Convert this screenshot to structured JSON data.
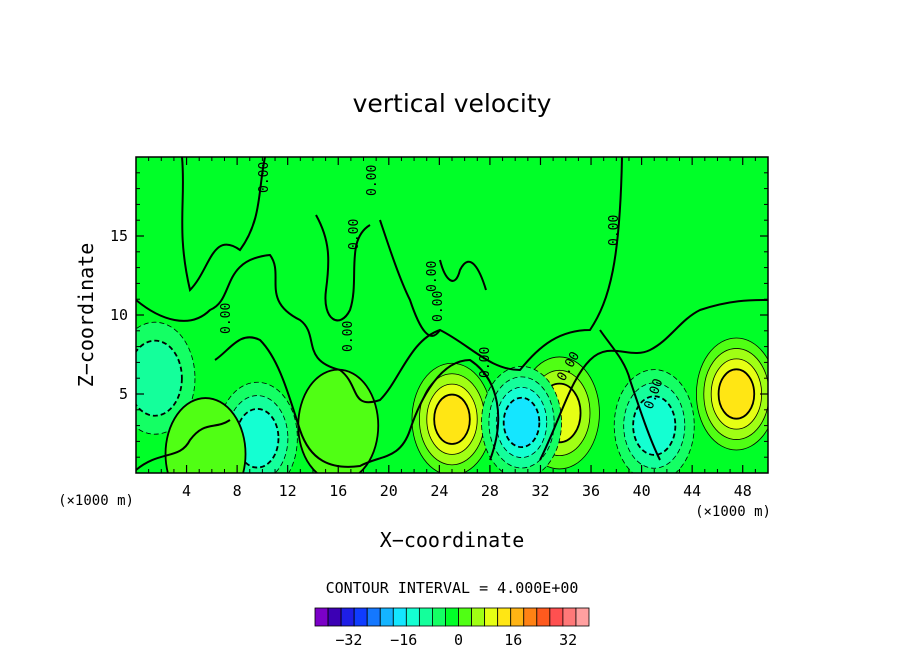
{
  "chart_data": {
    "type": "heatmap",
    "title": "vertical velocity",
    "xlabel": "X−coordinate",
    "ylabel": "Z−coordinate",
    "x_unit_left": "(×1000 m)",
    "x_unit_right": "(×1000 m)",
    "xlim": [
      0,
      50
    ],
    "ylim": [
      0,
      20
    ],
    "x_ticks": [
      4,
      8,
      12,
      16,
      20,
      24,
      28,
      32,
      36,
      40,
      44,
      48
    ],
    "y_ticks": [
      5,
      10,
      15
    ],
    "contour_interval_text": "CONTOUR INTERVAL = 4.000E+00",
    "contour_labels": [
      "0.00",
      "0.00",
      "0.00",
      "0.00",
      "0.00",
      "0.00",
      "0.00",
      "0.00",
      "0.00",
      "0.00",
      "0.00"
    ],
    "colorbar": {
      "tick_labels": [
        "−32",
        "−16",
        "0",
        "16",
        "32"
      ],
      "tick_values": [
        -32,
        -16,
        0,
        16,
        32
      ],
      "min": -40,
      "max": 40,
      "step": 4,
      "colors": [
        "#7b00c8",
        "#3c00b4",
        "#1e1ee6",
        "#0f3cff",
        "#1478ff",
        "#14b4ff",
        "#14e6ff",
        "#14ffd2",
        "#14ff9b",
        "#14ff64",
        "#00ff28",
        "#50ff14",
        "#a0ff14",
        "#e6ff14",
        "#ffe614",
        "#ffb414",
        "#ff8214",
        "#ff5a1e",
        "#ff5050",
        "#ff7878",
        "#ffa0a0"
      ]
    },
    "features": [
      {
        "x": 25,
        "z": 3.4,
        "w": 16,
        "sign": "up"
      },
      {
        "x": 47.5,
        "z": 5,
        "w": 16,
        "sign": "up"
      },
      {
        "x": 33.5,
        "z": 3.8,
        "w": 14,
        "sign": "up"
      },
      {
        "x": 9.6,
        "z": 2.2,
        "w": -14,
        "sign": "down"
      },
      {
        "x": 30.5,
        "z": 3.2,
        "w": -18,
        "sign": "down"
      },
      {
        "x": 41,
        "z": 3,
        "w": -14,
        "sign": "down"
      },
      {
        "x": 1.5,
        "z": 6,
        "w": -10,
        "sign": "down"
      },
      {
        "x": 5.5,
        "z": 1.2,
        "w": 6,
        "sign": "up"
      },
      {
        "x": 16,
        "z": 3,
        "w": 6,
        "sign": "up"
      }
    ]
  }
}
